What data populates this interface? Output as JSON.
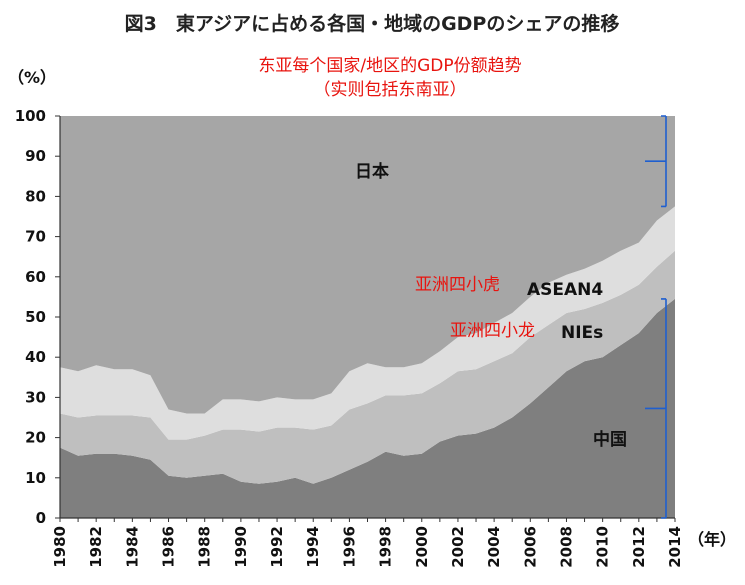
{
  "chart_data": {
    "type": "area",
    "stacked": true,
    "title": "図3　東アジアに占める各国・地域のGDPのシェアの推移",
    "annotation": [
      "东亚每个国家/地区的GDP份额趋势",
      "（实则包括东南亚）"
    ],
    "ylabel": "（%）",
    "xlabel": "（年）",
    "ylim": [
      0,
      100
    ],
    "yticks": [
      0,
      10,
      20,
      30,
      40,
      50,
      60,
      70,
      80,
      90,
      100
    ],
    "x": [
      1980,
      1981,
      1982,
      1983,
      1984,
      1985,
      1986,
      1987,
      1988,
      1989,
      1990,
      1991,
      1992,
      1993,
      1994,
      1995,
      1996,
      1997,
      1998,
      1999,
      2000,
      2001,
      2002,
      2003,
      2004,
      2005,
      2006,
      2007,
      2008,
      2009,
      2010,
      2011,
      2012,
      2013,
      2014
    ],
    "xticklabels": [
      "1980",
      "1982",
      "1984",
      "1986",
      "1988",
      "1990",
      "1992",
      "1994",
      "1996",
      "1998",
      "2000",
      "2002",
      "2004",
      "2006",
      "2008",
      "2010",
      "2012",
      "2014"
    ],
    "series": [
      {
        "name": "中国",
        "color": "#7f7f7f",
        "values": [
          17.5,
          15.5,
          16,
          16,
          15.5,
          14.5,
          10.5,
          10,
          10.5,
          11,
          9,
          8.5,
          9,
          10,
          8.5,
          10,
          12,
          14,
          16.5,
          15.5,
          16,
          19,
          20.5,
          21,
          22.5,
          25,
          28.5,
          32.5,
          36.5,
          39,
          40,
          43,
          46,
          51,
          54.5
        ]
      },
      {
        "name": "NIEs",
        "color": "#bfbfbf",
        "values": [
          8.5,
          9.5,
          9.5,
          9.5,
          10,
          10.5,
          9,
          9.5,
          10,
          11,
          13,
          13,
          13.5,
          12.5,
          13.5,
          13,
          15,
          14.5,
          14,
          15,
          15,
          14.5,
          16,
          16,
          16.5,
          16,
          16.5,
          15.5,
          14.5,
          13,
          13.5,
          12.5,
          12,
          11.5,
          12
        ]
      },
      {
        "name": "ASEAN4",
        "color": "#dedede",
        "values": [
          11.5,
          11.5,
          12.5,
          11.5,
          11.5,
          10.5,
          7.5,
          6.5,
          5.5,
          7.5,
          7.5,
          7.5,
          7.5,
          7,
          7.5,
          8,
          9.5,
          10,
          7,
          7,
          7.5,
          8,
          8.5,
          9,
          9.5,
          10,
          10,
          10.5,
          9.5,
          10,
          10.5,
          11,
          10.5,
          11.5,
          11
        ]
      },
      {
        "name": "日本",
        "color": "#a6a6a6",
        "values": [
          62.5,
          63.5,
          62,
          63,
          63,
          64.5,
          73,
          74,
          74,
          70.5,
          70.5,
          71,
          70,
          70.5,
          70.5,
          69,
          63.5,
          61.5,
          62.5,
          62.5,
          61.5,
          58.5,
          55,
          54,
          51.5,
          49,
          45,
          41.5,
          39.5,
          38,
          36,
          33.5,
          31.5,
          26,
          22.5
        ]
      }
    ],
    "series_labels": {
      "japan": "日本",
      "china": "中国",
      "asean": "ASEAN4",
      "nies": "NIEs",
      "asean_cn": "亚洲四小虎",
      "nies_cn": "亚洲四小龙"
    }
  }
}
